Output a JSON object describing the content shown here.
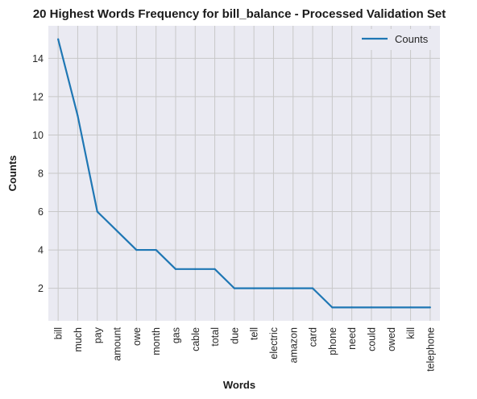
{
  "chart_data": {
    "type": "line",
    "title": "20 Highest Words Frequency for bill_balance - Processed Validation Set",
    "xlabel": "Words",
    "ylabel": "Counts",
    "categories": [
      "bill",
      "much",
      "pay",
      "amount",
      "owe",
      "month",
      "gas",
      "cable",
      "total",
      "due",
      "tell",
      "electric",
      "amazon",
      "card",
      "phone",
      "need",
      "could",
      "owed",
      "kill",
      "telephone"
    ],
    "series": [
      {
        "name": "Counts",
        "values": [
          15,
          11,
          6,
          5,
          4,
          4,
          3,
          3,
          3,
          2,
          2,
          2,
          2,
          2,
          1,
          1,
          1,
          1,
          1,
          1
        ]
      }
    ],
    "yticks": [
      2,
      4,
      6,
      8,
      10,
      12,
      14
    ],
    "ylim": [
      0.3,
      15.7
    ],
    "grid": true,
    "legend_position": "top-right",
    "colors": {
      "background": "#eaeaf2",
      "grid": "#c8c8c8",
      "line": "#1f77b4"
    }
  }
}
